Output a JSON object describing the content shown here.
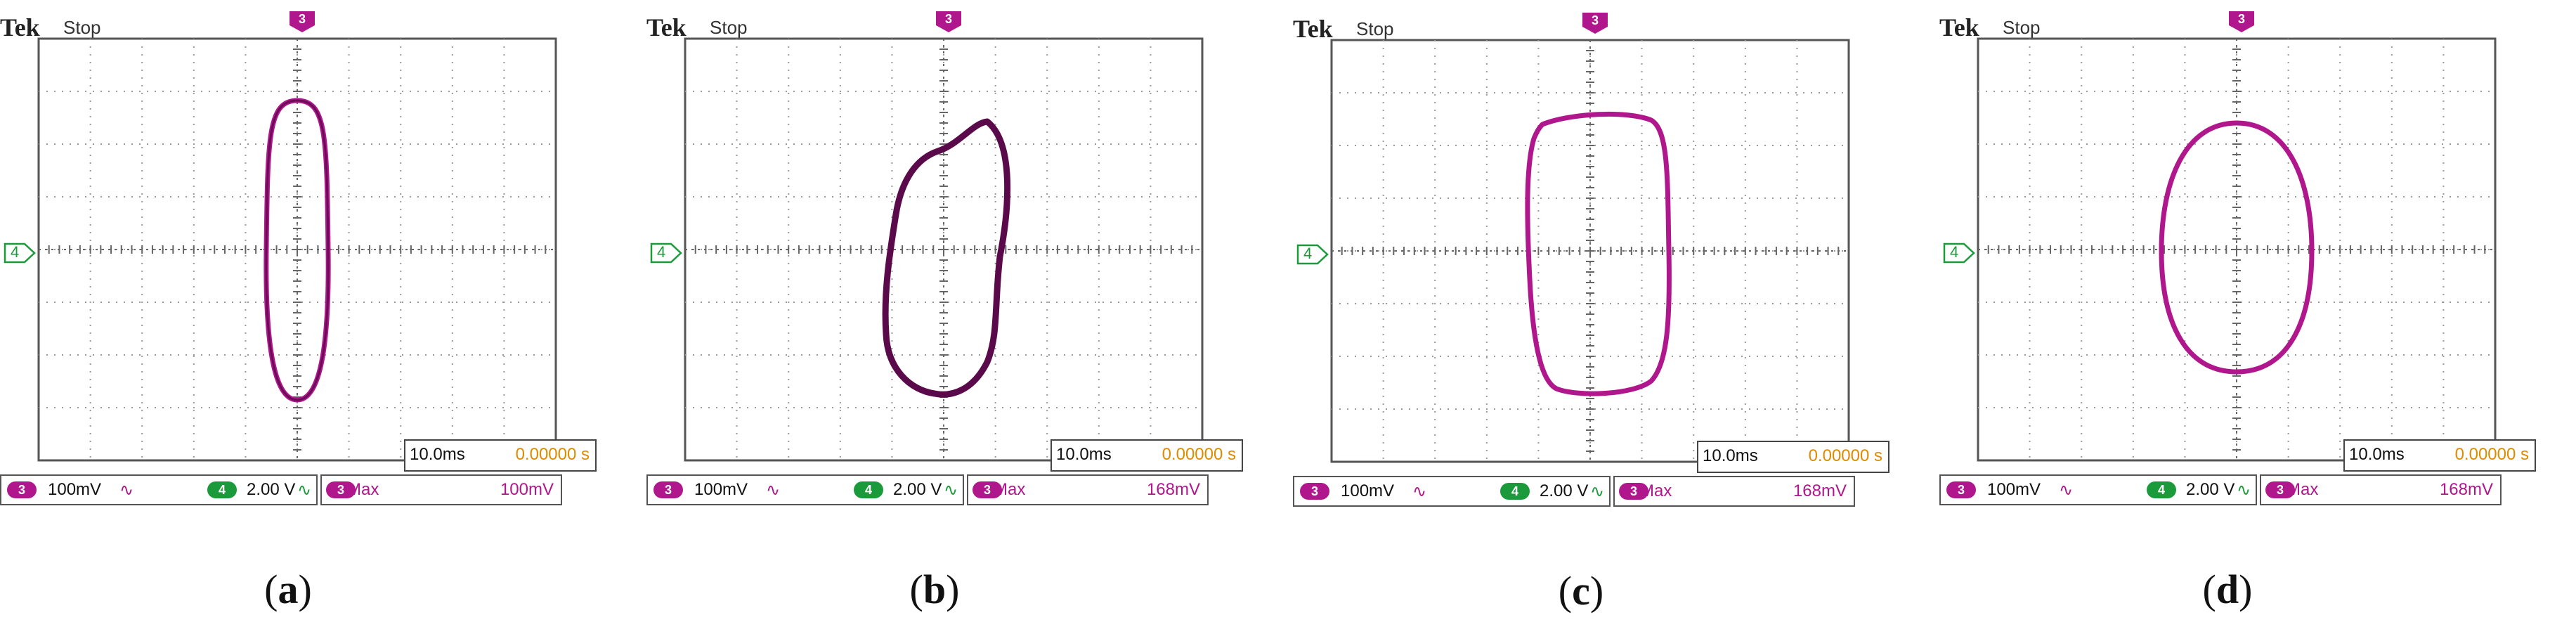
{
  "colors": {
    "trace": "#b0178c",
    "trace_dark": "#5a0a4a",
    "ch4": "#1a9a3a",
    "time_pos": "#e08a00"
  },
  "icons": {
    "trigger": "trigger-marker-icon",
    "ground": "ch4-ground-marker-icon",
    "ac": "ac-coupling-icon"
  },
  "panels": [
    {
      "id": "a",
      "brand": "Tek",
      "state": "Stop",
      "trigger_marker": "3",
      "ground_marker": "4",
      "time_div": "10.0ms",
      "time_pos": "0.00000 s",
      "ch3": {
        "badge": "3",
        "scale": "100mV",
        "coupling": "∿"
      },
      "ch4": {
        "badge": "4",
        "scale": "2.00 V",
        "coupling": "∿"
      },
      "meas": {
        "badge": "3",
        "label": "Max",
        "value": "100mV"
      },
      "caption": {
        "open": "(",
        "letter": "a",
        "close": ")"
      },
      "trace_shape": "narrow-vertical-ellipse"
    },
    {
      "id": "b",
      "brand": "Tek",
      "state": "Stop",
      "trigger_marker": "3",
      "ground_marker": "4",
      "time_div": "10.0ms",
      "time_pos": "0.00000 s",
      "ch3": {
        "badge": "3",
        "scale": "100mV",
        "coupling": "∿"
      },
      "ch4": {
        "badge": "4",
        "scale": "2.00 V",
        "coupling": "∿"
      },
      "meas": {
        "badge": "3",
        "label": "Max",
        "value": "168mV"
      },
      "caption": {
        "open": "(",
        "letter": "b",
        "close": ")"
      },
      "trace_shape": "kidney-loop"
    },
    {
      "id": "c",
      "brand": "Tek",
      "state": "Stop",
      "trigger_marker": "3",
      "ground_marker": "4",
      "time_div": "10.0ms",
      "time_pos": "0.00000 s",
      "ch3": {
        "badge": "3",
        "scale": "100mV",
        "coupling": "∿"
      },
      "ch4": {
        "badge": "4",
        "scale": "2.00 V",
        "coupling": "∿"
      },
      "meas": {
        "badge": "3",
        "label": "Max",
        "value": "168mV"
      },
      "caption": {
        "open": "(",
        "letter": "c",
        "close": ")"
      },
      "trace_shape": "rounded-rectangle-loop"
    },
    {
      "id": "d",
      "brand": "Tek",
      "state": "Stop",
      "trigger_marker": "3",
      "ground_marker": "4",
      "time_div": "10.0ms",
      "time_pos": "0.00000 s",
      "ch3": {
        "badge": "3",
        "scale": "100mV",
        "coupling": "∿"
      },
      "ch4": {
        "badge": "4",
        "scale": "2.00 V",
        "coupling": "∿"
      },
      "meas": {
        "badge": "3",
        "label": "Max",
        "value": "168mV"
      },
      "caption": {
        "open": "(",
        "letter": "d",
        "close": ")"
      },
      "trace_shape": "ellipse"
    }
  ]
}
